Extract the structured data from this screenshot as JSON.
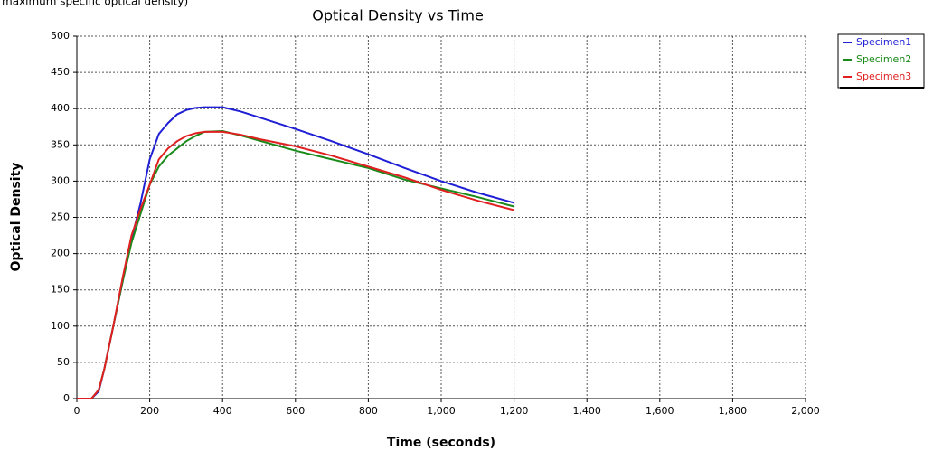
{
  "caption": "maximum specific optical density)",
  "chart_data": {
    "type": "line",
    "title": "Optical Density vs Time",
    "x_label": "Time (seconds)",
    "y_label": "Optical Density",
    "x": [
      0,
      40,
      60,
      75,
      100,
      125,
      150,
      175,
      200,
      225,
      250,
      275,
      300,
      325,
      350,
      400,
      450,
      500,
      600,
      700,
      800,
      900,
      1000,
      1100,
      1200
    ],
    "series": [
      {
        "name": "Specimen1",
        "color": "#1f1fd6",
        "values": [
          0,
          0,
          10,
          40,
          100,
          160,
          220,
          270,
          330,
          365,
          380,
          392,
          398,
          401,
          402,
          402,
          396,
          388,
          372,
          355,
          337,
          318,
          300,
          284,
          270
        ]
      },
      {
        "name": "Specimen2",
        "color": "#1a8a1a",
        "values": [
          0,
          0,
          12,
          40,
          100,
          160,
          215,
          255,
          295,
          320,
          335,
          345,
          355,
          362,
          368,
          369,
          363,
          356,
          342,
          330,
          318,
          302,
          290,
          278,
          265
        ]
      },
      {
        "name": "Specimen3",
        "color": "#e02020",
        "values": [
          0,
          0,
          12,
          40,
          100,
          165,
          225,
          262,
          295,
          330,
          345,
          355,
          362,
          366,
          368,
          368,
          364,
          358,
          348,
          335,
          320,
          305,
          288,
          273,
          260
        ]
      }
    ],
    "xlim": [
      0,
      2000
    ],
    "xticks": [
      0,
      200,
      400,
      600,
      800,
      {
        "value": 1000,
        "label": "1,000"
      },
      {
        "value": 1200,
        "label": "1,200"
      },
      {
        "value": 1400,
        "label": "1,400"
      },
      {
        "value": 1600,
        "label": "1,600"
      },
      {
        "value": 1800,
        "label": "1,800"
      },
      {
        "value": 2000,
        "label": "2,000"
      }
    ],
    "ylim": [
      0,
      500
    ],
    "yticks": [
      0,
      50,
      100,
      150,
      200,
      250,
      300,
      350,
      400,
      450,
      500
    ],
    "grid": true,
    "legend": "top-right"
  }
}
